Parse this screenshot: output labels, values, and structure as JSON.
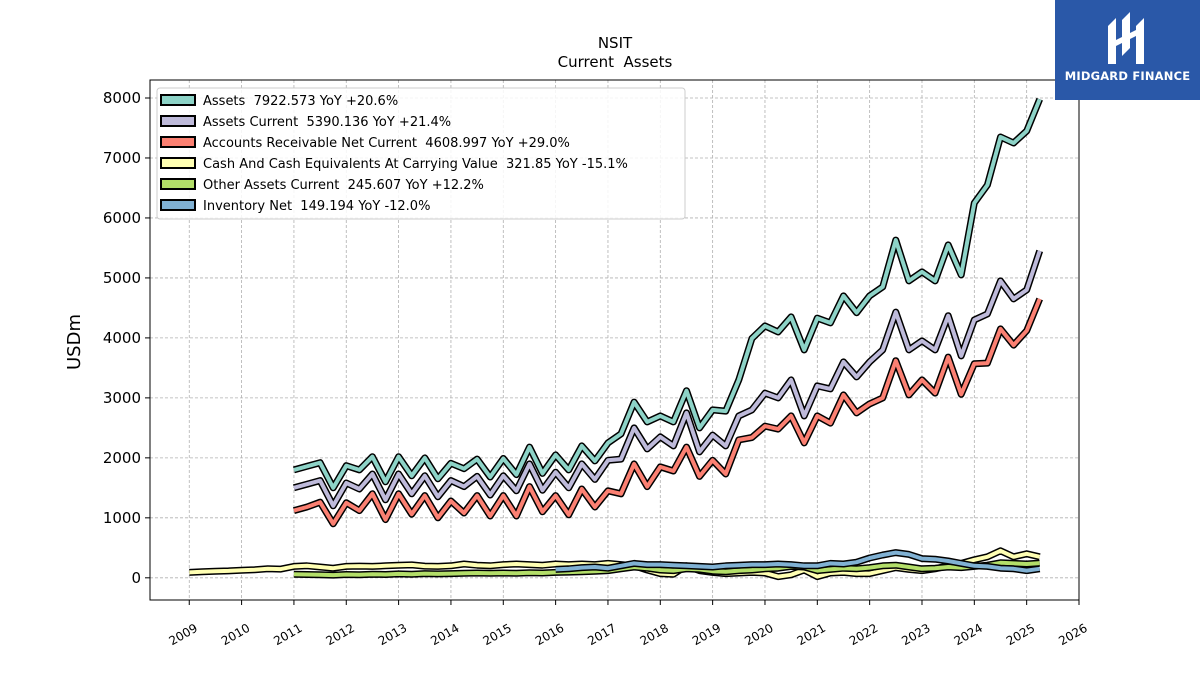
{
  "chart_data": {
    "type": "line",
    "title": "NSIT",
    "subtitle": "Current  Assets",
    "ylabel": "USDm",
    "xlabel": "",
    "xlim": [
      2008.25,
      2026.0
    ],
    "ylim": [
      -370,
      8300
    ],
    "x_ticks": [
      2009,
      2010,
      2011,
      2012,
      2013,
      2014,
      2015,
      2016,
      2017,
      2018,
      2019,
      2020,
      2021,
      2022,
      2023,
      2024,
      2025,
      2026
    ],
    "y_ticks": [
      0,
      1000,
      2000,
      3000,
      4000,
      5000,
      6000,
      7000,
      8000
    ],
    "grid": true,
    "legend_position": "top-left",
    "series": [
      {
        "name": "Assets",
        "legend": "Assets  7922.573 YoY +20.6%",
        "color": "#8dd3c7",
        "x": [
          2011.0,
          2011.25,
          2011.5,
          2011.75,
          2012.0,
          2012.25,
          2012.5,
          2012.75,
          2013.0,
          2013.25,
          2013.5,
          2013.75,
          2014.0,
          2014.25,
          2014.5,
          2014.75,
          2015.0,
          2015.25,
          2015.5,
          2015.75,
          2016.0,
          2016.25,
          2016.5,
          2016.75,
          2017.0,
          2017.25,
          2017.5,
          2017.75,
          2018.0,
          2018.25,
          2018.5,
          2018.75,
          2019.0,
          2019.25,
          2019.5,
          2019.75,
          2020.0,
          2020.25,
          2020.5,
          2020.75,
          2021.0,
          2021.25,
          2021.5,
          2021.75,
          2022.0,
          2022.25,
          2022.5,
          2022.75,
          2023.0,
          2023.25,
          2023.5,
          2023.75,
          2024.0,
          2024.25,
          2024.5,
          2024.75,
          2025.0,
          2025.25
        ],
        "y": [
          1800,
          1860,
          1920,
          1500,
          1870,
          1800,
          2020,
          1600,
          2020,
          1700,
          2000,
          1650,
          1910,
          1820,
          1980,
          1680,
          1990,
          1720,
          2180,
          1740,
          2050,
          1800,
          2200,
          1950,
          2250,
          2400,
          2930,
          2600,
          2700,
          2600,
          3120,
          2500,
          2800,
          2780,
          3300,
          3990,
          4200,
          4100,
          4350,
          3800,
          4330,
          4250,
          4700,
          4420,
          4700,
          4850,
          5630,
          4950,
          5100,
          4950,
          5550,
          5050,
          6250,
          6550,
          7350,
          7250,
          7450,
          7980
        ]
      },
      {
        "name": "Assets Current",
        "legend": "Assets Current  5390.136 YoY +21.4%",
        "color": "#bebada",
        "x": [
          2011.0,
          2011.25,
          2011.5,
          2011.75,
          2012.0,
          2012.25,
          2012.5,
          2012.75,
          2013.0,
          2013.25,
          2013.5,
          2013.75,
          2014.0,
          2014.25,
          2014.5,
          2014.75,
          2015.0,
          2015.25,
          2015.5,
          2015.75,
          2016.0,
          2016.25,
          2016.5,
          2016.75,
          2017.0,
          2017.25,
          2017.5,
          2017.75,
          2018.0,
          2018.25,
          2018.5,
          2018.75,
          2019.0,
          2019.25,
          2019.5,
          2019.75,
          2020.0,
          2020.25,
          2020.5,
          2020.75,
          2021.0,
          2021.25,
          2021.5,
          2021.75,
          2022.0,
          2022.25,
          2022.5,
          2022.75,
          2023.0,
          2023.25,
          2023.5,
          2023.75,
          2024.0,
          2024.25,
          2024.5,
          2024.75,
          2025.0,
          2025.25
        ],
        "y": [
          1500,
          1560,
          1620,
          1200,
          1580,
          1480,
          1730,
          1300,
          1730,
          1400,
          1700,
          1350,
          1620,
          1520,
          1690,
          1380,
          1700,
          1450,
          1900,
          1460,
          1760,
          1500,
          1900,
          1640,
          1960,
          1980,
          2500,
          2150,
          2350,
          2200,
          2750,
          2100,
          2380,
          2200,
          2700,
          2800,
          3080,
          3000,
          3300,
          2700,
          3200,
          3150,
          3600,
          3350,
          3600,
          3800,
          4430,
          3800,
          3950,
          3800,
          4370,
          3700,
          4300,
          4400,
          4950,
          4650,
          4800,
          5450
        ]
      },
      {
        "name": "Accounts Receivable Net Current",
        "legend": "Accounts Receivable Net Current  4608.997 YoY +29.0%",
        "color": "#fb8072",
        "x": [
          2011.0,
          2011.25,
          2011.5,
          2011.75,
          2012.0,
          2012.25,
          2012.5,
          2012.75,
          2013.0,
          2013.25,
          2013.5,
          2013.75,
          2014.0,
          2014.25,
          2014.5,
          2014.75,
          2015.0,
          2015.25,
          2015.5,
          2015.75,
          2016.0,
          2016.25,
          2016.5,
          2016.75,
          2017.0,
          2017.25,
          2017.5,
          2017.75,
          2018.0,
          2018.25,
          2018.5,
          2018.75,
          2019.0,
          2019.25,
          2019.5,
          2019.75,
          2020.0,
          2020.25,
          2020.5,
          2020.75,
          2021.0,
          2021.25,
          2021.5,
          2021.75,
          2022.0,
          2022.25,
          2022.5,
          2022.75,
          2023.0,
          2023.25,
          2023.5,
          2023.75,
          2024.0,
          2024.25,
          2024.5,
          2024.75,
          2025.0,
          2025.25
        ],
        "y": [
          1120,
          1180,
          1260,
          900,
          1250,
          1120,
          1400,
          970,
          1400,
          1060,
          1370,
          1000,
          1280,
          1080,
          1370,
          1030,
          1370,
          1030,
          1520,
          1100,
          1370,
          1050,
          1480,
          1180,
          1450,
          1400,
          1900,
          1520,
          1850,
          1780,
          2180,
          1690,
          1960,
          1730,
          2300,
          2340,
          2530,
          2480,
          2700,
          2250,
          2700,
          2580,
          3050,
          2750,
          2900,
          3000,
          3620,
          3050,
          3300,
          3080,
          3680,
          3060,
          3570,
          3580,
          4150,
          3880,
          4120,
          4650
        ]
      },
      {
        "name": "Cash And Cash Equivalents At Carrying Value",
        "legend": "Cash And Cash Equivalents At Carrying Value  321.85 YoY -15.1%",
        "color": "#ffffb3",
        "x": [
          2009.0,
          2009.25,
          2009.5,
          2009.75,
          2010.0,
          2010.25,
          2010.5,
          2010.75,
          2011.0,
          2011.25,
          2011.5,
          2011.75,
          2012.0,
          2012.25,
          2012.5,
          2012.75,
          2013.0,
          2013.25,
          2013.5,
          2013.75,
          2014.0,
          2014.25,
          2014.5,
          2014.75,
          2015.0,
          2015.25,
          2015.5,
          2015.75,
          2016.0,
          2016.25,
          2016.5,
          2016.75,
          2017.0,
          2017.25,
          2017.5,
          2017.75,
          2018.0,
          2018.25,
          2018.5,
          2018.75,
          2019.0,
          2019.25,
          2019.5,
          2019.75,
          2020.0,
          2020.25,
          2020.5,
          2020.75,
          2021.0,
          2021.25,
          2021.5,
          2021.75,
          2022.0,
          2022.25,
          2022.5,
          2022.75,
          2023.0,
          2023.25,
          2023.5,
          2023.75,
          2024.0,
          2024.25,
          2024.5,
          2024.75,
          2025.0,
          2025.25
        ],
        "y": [
          90,
          100,
          110,
          115,
          125,
          135,
          150,
          145,
          190,
          200,
          180,
          160,
          190,
          195,
          190,
          200,
          210,
          215,
          195,
          190,
          200,
          230,
          210,
          200,
          220,
          230,
          220,
          210,
          230,
          220,
          230,
          220,
          240,
          220,
          200,
          130,
          70,
          60,
          200,
          120,
          90,
          70,
          80,
          90,
          80,
          20,
          50,
          130,
          20,
          80,
          90,
          70,
          70,
          120,
          170,
          140,
          120,
          150,
          200,
          240,
          300,
          350,
          450,
          350,
          400,
          350
        ]
      },
      {
        "name": "Other Assets Current",
        "legend": "Other Assets Current  245.607 YoY +12.2%",
        "color": "#b3de69",
        "x": [
          2011.0,
          2011.25,
          2011.5,
          2011.75,
          2012.0,
          2012.25,
          2012.5,
          2012.75,
          2013.0,
          2013.25,
          2013.5,
          2013.75,
          2014.0,
          2014.25,
          2014.5,
          2014.75,
          2015.0,
          2015.25,
          2015.5,
          2015.75,
          2016.0,
          2016.25,
          2016.5,
          2016.75,
          2017.0,
          2017.25,
          2017.5,
          2017.75,
          2018.0,
          2018.25,
          2018.5,
          2018.75,
          2019.0,
          2019.25,
          2019.5,
          2019.75,
          2020.0,
          2020.25,
          2020.5,
          2020.75,
          2021.0,
          2021.25,
          2021.5,
          2021.75,
          2022.0,
          2022.25,
          2022.5,
          2022.75,
          2023.0,
          2023.25,
          2023.5,
          2023.75,
          2024.0,
          2024.25,
          2024.5,
          2024.75,
          2025.0,
          2025.25
        ],
        "y": [
          60,
          55,
          50,
          45,
          55,
          50,
          60,
          55,
          65,
          60,
          70,
          65,
          70,
          75,
          80,
          75,
          80,
          75,
          85,
          80,
          90,
          95,
          100,
          110,
          120,
          150,
          180,
          160,
          130,
          120,
          150,
          140,
          110,
          100,
          120,
          130,
          150,
          160,
          190,
          180,
          120,
          140,
          160,
          150,
          170,
          200,
          210,
          180,
          150,
          160,
          180,
          170,
          190,
          210,
          250,
          240,
          230,
          245
        ]
      },
      {
        "name": "Inventory Net",
        "legend": "Inventory Net  149.194 YoY -12.0%",
        "color": "#80b1d3",
        "x": [
          2016.0,
          2016.25,
          2016.5,
          2016.75,
          2017.0,
          2017.25,
          2017.5,
          2017.75,
          2018.0,
          2018.25,
          2018.5,
          2018.75,
          2019.0,
          2019.25,
          2019.5,
          2019.75,
          2020.0,
          2020.25,
          2020.5,
          2020.75,
          2021.0,
          2021.25,
          2021.5,
          2021.75,
          2022.0,
          2022.25,
          2022.5,
          2022.75,
          2023.0,
          2023.25,
          2023.5,
          2023.75,
          2024.0,
          2024.25,
          2024.5,
          2024.75,
          2025.0,
          2025.25
        ],
        "y": [
          140,
          150,
          170,
          180,
          160,
          200,
          240,
          220,
          220,
          210,
          200,
          190,
          180,
          200,
          210,
          220,
          220,
          230,
          220,
          200,
          200,
          240,
          230,
          260,
          330,
          380,
          420,
          390,
          320,
          310,
          280,
          240,
          200,
          190,
          160,
          150,
          120,
          150
        ]
      }
    ]
  },
  "brand": {
    "name": "MIDGARD FINANCE"
  }
}
